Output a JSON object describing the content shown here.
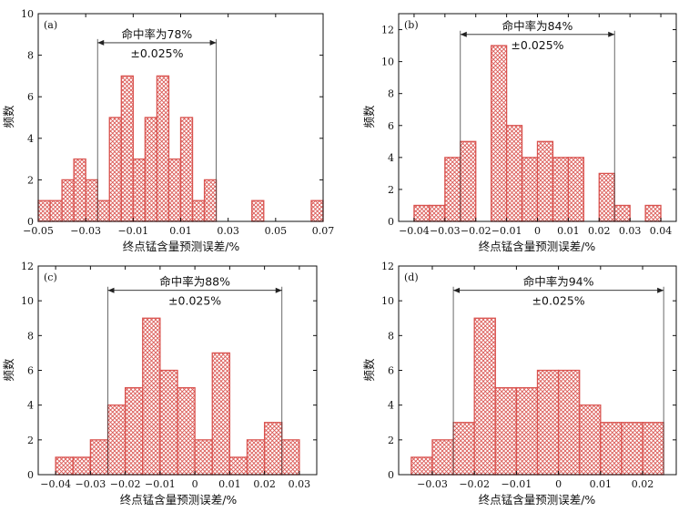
{
  "chart_data": [
    {
      "type": "bar",
      "panel_label": "(a)",
      "xlabel": "终点锰含量预测误差/%",
      "ylabel": "频数",
      "xlim": [
        -0.05,
        0.07
      ],
      "ylim": [
        0,
        10
      ],
      "xticks": [
        -0.05,
        -0.03,
        -0.01,
        0.01,
        0.03,
        0.05,
        0.07
      ],
      "xtick_labels": [
        "−0.05",
        "−0.03",
        "−0.01",
        "0.01",
        "0.03",
        "0.05",
        "0.07"
      ],
      "yticks": [
        0,
        2,
        4,
        6,
        8,
        10
      ],
      "bin_width": 0.005,
      "bins": [
        {
          "x": -0.0475,
          "y": 1
        },
        {
          "x": -0.0425,
          "y": 1
        },
        {
          "x": -0.0375,
          "y": 2
        },
        {
          "x": -0.0325,
          "y": 3
        },
        {
          "x": -0.0275,
          "y": 2
        },
        {
          "x": -0.0225,
          "y": 1
        },
        {
          "x": -0.0175,
          "y": 5
        },
        {
          "x": -0.0125,
          "y": 7
        },
        {
          "x": -0.0075,
          "y": 3
        },
        {
          "x": -0.0025,
          "y": 5
        },
        {
          "x": 0.0025,
          "y": 7
        },
        {
          "x": 0.0075,
          "y": 3
        },
        {
          "x": 0.0125,
          "y": 5
        },
        {
          "x": 0.0175,
          "y": 1
        },
        {
          "x": 0.0225,
          "y": 2
        },
        {
          "x": 0.0425,
          "y": 1
        },
        {
          "x": 0.0675,
          "y": 1
        }
      ],
      "annotation": {
        "text": "命中率为78%",
        "range_text": "±0.025%",
        "x_range": [
          -0.025,
          0.025
        ],
        "y": 8.6
      }
    },
    {
      "type": "bar",
      "panel_label": "(b)",
      "xlabel": "终点锰含量预测误差/%",
      "ylabel": "频数",
      "xlim": [
        -0.045,
        0.045
      ],
      "ylim": [
        0,
        13
      ],
      "xticks": [
        -0.04,
        -0.03,
        -0.02,
        -0.01,
        0,
        0.01,
        0.02,
        0.03,
        0.04
      ],
      "xtick_labels": [
        "−0.04",
        "−0.03",
        "−0.02",
        "−0.01",
        "0",
        "0.01",
        "0.02",
        "0.03",
        "0.04"
      ],
      "yticks": [
        0,
        2,
        4,
        6,
        8,
        10,
        12
      ],
      "bin_width": 0.005,
      "bins": [
        {
          "x": -0.0375,
          "y": 1
        },
        {
          "x": -0.0325,
          "y": 1
        },
        {
          "x": -0.0275,
          "y": 4
        },
        {
          "x": -0.0225,
          "y": 5
        },
        {
          "x": -0.0125,
          "y": 11
        },
        {
          "x": -0.0075,
          "y": 6
        },
        {
          "x": -0.0025,
          "y": 4
        },
        {
          "x": 0.0025,
          "y": 5
        },
        {
          "x": 0.0075,
          "y": 4
        },
        {
          "x": 0.0125,
          "y": 4
        },
        {
          "x": 0.0225,
          "y": 3
        },
        {
          "x": 0.0275,
          "y": 1
        },
        {
          "x": 0.0375,
          "y": 1
        }
      ],
      "annotation": {
        "text": "命中率为84%",
        "range_text": "±0.025%",
        "x_range": [
          -0.025,
          0.025
        ],
        "y": 11.7
      }
    },
    {
      "type": "bar",
      "panel_label": "(c)",
      "xlabel": "终点锰含量预测误差/%",
      "ylabel": "频数",
      "xlim": [
        -0.045,
        0.035
      ],
      "ylim": [
        0,
        12
      ],
      "xticks": [
        -0.04,
        -0.03,
        -0.02,
        -0.01,
        0,
        0.01,
        0.02,
        0.03
      ],
      "xtick_labels": [
        "−0.04",
        "−0.03",
        "−0.02",
        "−0.01",
        "0",
        "0.01",
        "0.02",
        "0.03"
      ],
      "yticks": [
        0,
        2,
        4,
        6,
        8,
        10,
        12
      ],
      "bin_width": 0.005,
      "bins": [
        {
          "x": -0.0375,
          "y": 1
        },
        {
          "x": -0.0325,
          "y": 1
        },
        {
          "x": -0.0275,
          "y": 2
        },
        {
          "x": -0.0225,
          "y": 4
        },
        {
          "x": -0.0175,
          "y": 5
        },
        {
          "x": -0.0125,
          "y": 9
        },
        {
          "x": -0.0075,
          "y": 6
        },
        {
          "x": -0.0025,
          "y": 5
        },
        {
          "x": 0.0025,
          "y": 2
        },
        {
          "x": 0.0075,
          "y": 7
        },
        {
          "x": 0.0125,
          "y": 1
        },
        {
          "x": 0.0175,
          "y": 2
        },
        {
          "x": 0.0225,
          "y": 3
        },
        {
          "x": 0.0275,
          "y": 2
        }
      ],
      "annotation": {
        "text": "命中率为88%",
        "range_text": "±0.025%",
        "x_range": [
          -0.025,
          0.025
        ],
        "y": 10.6
      }
    },
    {
      "type": "bar",
      "panel_label": "(d)",
      "xlabel": "终点锰含量预测误差/%",
      "ylabel": "频数",
      "xlim": [
        -0.038,
        0.028
      ],
      "ylim": [
        0,
        12
      ],
      "xticks": [
        -0.03,
        -0.02,
        -0.01,
        0,
        0.01,
        0.02
      ],
      "xtick_labels": [
        "−0.03",
        "−0.02",
        "−0.01",
        "0",
        "0.01",
        "0.02"
      ],
      "yticks": [
        0,
        2,
        4,
        6,
        8,
        10,
        12
      ],
      "bin_width": 0.005,
      "bins": [
        {
          "x": -0.0325,
          "y": 1
        },
        {
          "x": -0.0275,
          "y": 2
        },
        {
          "x": -0.0225,
          "y": 3
        },
        {
          "x": -0.0175,
          "y": 9
        },
        {
          "x": -0.0125,
          "y": 5
        },
        {
          "x": -0.0075,
          "y": 5
        },
        {
          "x": -0.0025,
          "y": 6
        },
        {
          "x": 0.0025,
          "y": 6
        },
        {
          "x": 0.0075,
          "y": 4
        },
        {
          "x": 0.0125,
          "y": 3
        },
        {
          "x": 0.0175,
          "y": 3
        },
        {
          "x": 0.0225,
          "y": 3
        }
      ],
      "annotation": {
        "text": "命中率为94%",
        "range_text": "±0.025%",
        "x_range": [
          -0.025,
          0.025
        ],
        "y": 10.6
      }
    }
  ],
  "style": {
    "bar_color": "#d9534f",
    "hatch_color": "#d9534f",
    "axis_color": "#111111"
  }
}
